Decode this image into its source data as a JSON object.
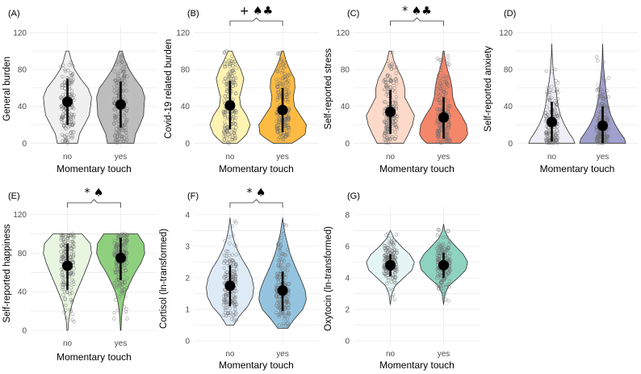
{
  "chart_data": [
    {
      "type": "violin",
      "label": "(A)",
      "ylabel": "General burden",
      "xlabel": "Momentary touch",
      "categories": [
        "no",
        "yes"
      ],
      "yticks": [
        0,
        40,
        80,
        120
      ],
      "ylim": [
        -5,
        123
      ],
      "colors": [
        "#f0f0f0",
        "#bdbdbd"
      ],
      "series": [
        {
          "name": "no",
          "mean": 45,
          "sd_low": 20,
          "sd_high": 70,
          "min": 0,
          "max": 100,
          "density": [
            [
              0,
              0.42
            ],
            [
              10,
              0.5
            ],
            [
              20,
              0.7
            ],
            [
              30,
              0.9
            ],
            [
              40,
              0.96
            ],
            [
              50,
              1.0
            ],
            [
              60,
              0.85
            ],
            [
              70,
              0.55
            ],
            [
              80,
              0.3
            ],
            [
              90,
              0.16
            ],
            [
              100,
              0.06
            ]
          ]
        },
        {
          "name": "yes",
          "mean": 42,
          "sd_low": 17,
          "sd_high": 67,
          "min": 0,
          "max": 100,
          "density": [
            [
              0,
              0.55
            ],
            [
              10,
              0.62
            ],
            [
              20,
              0.8
            ],
            [
              30,
              0.95
            ],
            [
              40,
              0.97
            ],
            [
              50,
              1.0
            ],
            [
              60,
              0.88
            ],
            [
              70,
              0.6
            ],
            [
              80,
              0.35
            ],
            [
              90,
              0.18
            ],
            [
              100,
              0.06
            ]
          ]
        }
      ],
      "significance": {
        "text": "",
        "bracket": false
      }
    },
    {
      "type": "violin",
      "label": "(B)",
      "ylabel": "Covid-19 related burden",
      "xlabel": "Momentary touch",
      "categories": [
        "no",
        "yes"
      ],
      "yticks": [
        0,
        40,
        80,
        120
      ],
      "ylim": [
        -5,
        123
      ],
      "colors": [
        "#fff3b2",
        "#fdbb43"
      ],
      "series": [
        {
          "name": "no",
          "mean": 41,
          "sd_low": 15,
          "sd_high": 68,
          "min": 0,
          "max": 100,
          "density": [
            [
              0,
              0.3
            ],
            [
              5,
              0.52
            ],
            [
              10,
              0.7
            ],
            [
              20,
              0.85
            ],
            [
              30,
              0.7
            ],
            [
              40,
              0.45
            ],
            [
              50,
              0.4
            ],
            [
              60,
              0.5
            ],
            [
              70,
              0.58
            ],
            [
              80,
              0.45
            ],
            [
              90,
              0.25
            ],
            [
              100,
              0.08
            ]
          ]
        },
        {
          "name": "yes",
          "mean": 36,
          "sd_low": 12,
          "sd_high": 60,
          "min": 0,
          "max": 100,
          "density": [
            [
              0,
              0.4
            ],
            [
              5,
              0.7
            ],
            [
              10,
              0.95
            ],
            [
              20,
              1.0
            ],
            [
              30,
              0.75
            ],
            [
              40,
              0.5
            ],
            [
              50,
              0.45
            ],
            [
              60,
              0.52
            ],
            [
              70,
              0.5
            ],
            [
              80,
              0.3
            ],
            [
              90,
              0.14
            ],
            [
              100,
              0.04
            ]
          ]
        }
      ],
      "significance": {
        "text": "+ ♠♣",
        "bracket": true
      }
    },
    {
      "type": "violin",
      "label": "(C)",
      "ylabel": "Self-reported stress",
      "xlabel": "Momentary touch",
      "categories": [
        "no",
        "yes"
      ],
      "yticks": [
        0,
        40,
        80,
        120
      ],
      "ylim": [
        -5,
        123
      ],
      "colors": [
        "#fcd9c8",
        "#f4866a"
      ],
      "series": [
        {
          "name": "no",
          "mean": 34,
          "sd_low": 10,
          "sd_high": 58,
          "min": 0,
          "max": 100,
          "density": [
            [
              0,
              0.55
            ],
            [
              10,
              0.75
            ],
            [
              20,
              0.92
            ],
            [
              30,
              1.0
            ],
            [
              40,
              0.8
            ],
            [
              50,
              0.6
            ],
            [
              60,
              0.6
            ],
            [
              70,
              0.5
            ],
            [
              80,
              0.3
            ],
            [
              90,
              0.14
            ],
            [
              100,
              0.05
            ]
          ]
        },
        {
          "name": "yes",
          "mean": 28,
          "sd_low": 5,
          "sd_high": 50,
          "min": 0,
          "max": 100,
          "density": [
            [
              0,
              0.7
            ],
            [
              5,
              0.9
            ],
            [
              10,
              1.0
            ],
            [
              20,
              0.95
            ],
            [
              30,
              0.75
            ],
            [
              40,
              0.5
            ],
            [
              50,
              0.38
            ],
            [
              60,
              0.35
            ],
            [
              70,
              0.28
            ],
            [
              80,
              0.16
            ],
            [
              90,
              0.07
            ],
            [
              100,
              0.02
            ]
          ]
        }
      ],
      "significance": {
        "text": "* ♠♣",
        "bracket": true
      }
    },
    {
      "type": "violin",
      "label": "(D)",
      "ylabel": "Self-reported anxiety",
      "xlabel": "Momentary touch",
      "categories": [
        "no",
        "yes"
      ],
      "yticks": [
        0,
        40,
        80,
        120
      ],
      "ylim": [
        -5,
        123
      ],
      "colors": [
        "#efeef6",
        "#9fa0cc"
      ],
      "series": [
        {
          "name": "no",
          "mean": 23,
          "sd_low": 2,
          "sd_high": 45,
          "min": 0,
          "max": 108,
          "density": [
            [
              0,
              1.0
            ],
            [
              5,
              0.92
            ],
            [
              10,
              0.78
            ],
            [
              20,
              0.55
            ],
            [
              30,
              0.38
            ],
            [
              40,
              0.28
            ],
            [
              50,
              0.22
            ],
            [
              60,
              0.16
            ],
            [
              70,
              0.1
            ],
            [
              80,
              0.06
            ],
            [
              90,
              0.03
            ],
            [
              100,
              0.01
            ],
            [
              108,
              0.0
            ]
          ]
        },
        {
          "name": "yes",
          "mean": 19,
          "sd_low": 0,
          "sd_high": 40,
          "min": 0,
          "max": 108,
          "density": [
            [
              0,
              1.0
            ],
            [
              5,
              0.95
            ],
            [
              10,
              0.8
            ],
            [
              20,
              0.55
            ],
            [
              30,
              0.36
            ],
            [
              40,
              0.25
            ],
            [
              50,
              0.18
            ],
            [
              60,
              0.13
            ],
            [
              70,
              0.09
            ],
            [
              80,
              0.05
            ],
            [
              90,
              0.02
            ],
            [
              100,
              0.01
            ],
            [
              108,
              0.0
            ]
          ]
        }
      ],
      "significance": {
        "text": "",
        "bracket": false
      }
    },
    {
      "type": "violin",
      "label": "(E)",
      "ylabel": "Self-reported happiness",
      "xlabel": "Momentary touch",
      "categories": [
        "no",
        "yes"
      ],
      "yticks": [
        0,
        40,
        80,
        120
      ],
      "ylim": [
        -5,
        123
      ],
      "colors": [
        "#e8f5e0",
        "#8fd07f"
      ],
      "series": [
        {
          "name": "no",
          "mean": 67,
          "sd_low": 42,
          "sd_high": 90,
          "min": 0,
          "max": 100,
          "density": [
            [
              0,
              0.02
            ],
            [
              10,
              0.05
            ],
            [
              20,
              0.12
            ],
            [
              30,
              0.22
            ],
            [
              40,
              0.38
            ],
            [
              50,
              0.55
            ],
            [
              60,
              0.72
            ],
            [
              70,
              0.88
            ],
            [
              80,
              1.0
            ],
            [
              90,
              0.95
            ],
            [
              100,
              0.6
            ]
          ]
        },
        {
          "name": "yes",
          "mean": 75,
          "sd_low": 52,
          "sd_high": 96,
          "min": 0,
          "max": 100,
          "density": [
            [
              0,
              0.01
            ],
            [
              10,
              0.03
            ],
            [
              20,
              0.06
            ],
            [
              30,
              0.12
            ],
            [
              40,
              0.22
            ],
            [
              50,
              0.4
            ],
            [
              60,
              0.6
            ],
            [
              70,
              0.85
            ],
            [
              80,
              1.0
            ],
            [
              90,
              0.96
            ],
            [
              100,
              0.7
            ]
          ]
        }
      ],
      "significance": {
        "text": "* ♠",
        "bracket": true
      }
    },
    {
      "type": "violin",
      "label": "(F)",
      "ylabel": "Cortisol (ln-transformed)",
      "xlabel": "Momentary touch",
      "categories": [
        "no",
        "yes"
      ],
      "yticks": [
        0,
        1,
        2,
        3,
        4
      ],
      "ylim": [
        -0.15,
        4.1
      ],
      "colors": [
        "#deebf7",
        "#94c4df"
      ],
      "series": [
        {
          "name": "no",
          "mean": 1.75,
          "sd_low": 1.1,
          "sd_high": 2.4,
          "min": 0.5,
          "max": 3.9,
          "density": [
            [
              0.5,
              0.15
            ],
            [
              0.8,
              0.4
            ],
            [
              1.1,
              0.75
            ],
            [
              1.4,
              0.95
            ],
            [
              1.7,
              1.0
            ],
            [
              2.0,
              0.92
            ],
            [
              2.3,
              0.75
            ],
            [
              2.6,
              0.5
            ],
            [
              2.9,
              0.3
            ],
            [
              3.2,
              0.16
            ],
            [
              3.5,
              0.07
            ],
            [
              3.9,
              0.0
            ]
          ]
        },
        {
          "name": "yes",
          "mean": 1.6,
          "sd_low": 0.95,
          "sd_high": 2.2,
          "min": 0.4,
          "max": 3.9,
          "density": [
            [
              0.4,
              0.2
            ],
            [
              0.7,
              0.5
            ],
            [
              1.0,
              0.85
            ],
            [
              1.3,
              1.0
            ],
            [
              1.6,
              0.95
            ],
            [
              1.9,
              0.8
            ],
            [
              2.2,
              0.62
            ],
            [
              2.5,
              0.45
            ],
            [
              2.8,
              0.3
            ],
            [
              3.1,
              0.2
            ],
            [
              3.4,
              0.1
            ],
            [
              3.9,
              0.0
            ]
          ]
        }
      ],
      "significance": {
        "text": "* ♠",
        "bracket": true
      }
    },
    {
      "type": "violin",
      "label": "(G)",
      "ylabel": "Oxytocin (ln-transformed)",
      "xlabel": "Momentary touch",
      "categories": [
        "no",
        "yes"
      ],
      "yticks": [
        0,
        2,
        4,
        6,
        8
      ],
      "ylim": [
        -0.3,
        8.2
      ],
      "colors": [
        "#e5f5f5",
        "#8dd3c0"
      ],
      "series": [
        {
          "name": "no",
          "mean": 4.8,
          "sd_low": 4.1,
          "sd_high": 5.5,
          "min": 2.3,
          "max": 7.0,
          "density": [
            [
              2.3,
              0.0
            ],
            [
              3.0,
              0.06
            ],
            [
              3.5,
              0.2
            ],
            [
              4.0,
              0.55
            ],
            [
              4.5,
              0.9
            ],
            [
              5.0,
              1.0
            ],
            [
              5.5,
              0.8
            ],
            [
              6.0,
              0.45
            ],
            [
              6.5,
              0.15
            ],
            [
              7.0,
              0.0
            ]
          ]
        },
        {
          "name": "yes",
          "mean": 4.8,
          "sd_low": 4.0,
          "sd_high": 5.6,
          "min": 2.3,
          "max": 7.4,
          "density": [
            [
              2.3,
              0.0
            ],
            [
              3.0,
              0.06
            ],
            [
              3.5,
              0.22
            ],
            [
              4.0,
              0.6
            ],
            [
              4.5,
              0.92
            ],
            [
              5.0,
              1.0
            ],
            [
              5.5,
              0.82
            ],
            [
              6.0,
              0.5
            ],
            [
              6.5,
              0.2
            ],
            [
              7.0,
              0.05
            ],
            [
              7.4,
              0.0
            ]
          ]
        }
      ],
      "significance": {
        "text": "",
        "bracket": false
      }
    }
  ]
}
